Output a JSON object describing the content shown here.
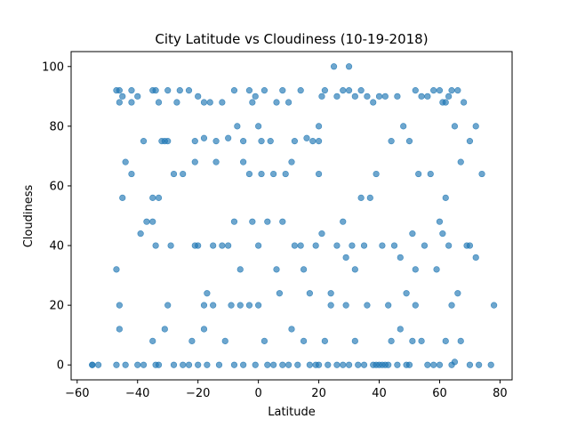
{
  "chart_data": {
    "type": "scatter",
    "title": "City Latitude vs Cloudiness (10-19-2018)",
    "xlabel": "Latitude",
    "ylabel": "Cloudiness",
    "xlim": [
      -62,
      84
    ],
    "ylim": [
      -5,
      105
    ],
    "xticks": [
      -60,
      -40,
      -20,
      0,
      20,
      40,
      60,
      80
    ],
    "yticks": [
      0,
      20,
      40,
      60,
      80,
      100
    ],
    "xtick_labels": [
      "−60",
      "−40",
      "−20",
      "0",
      "20",
      "40",
      "60",
      "80"
    ],
    "ytick_labels": [
      "0",
      "20",
      "40",
      "60",
      "80",
      "100"
    ],
    "grid": false,
    "legend": "none",
    "marker_color": "#1f77b4",
    "marker_alpha": 0.65,
    "points": [
      [
        -55,
        0
      ],
      [
        -53,
        0
      ],
      [
        -47,
        92
      ],
      [
        -46,
        88
      ],
      [
        -46,
        92
      ],
      [
        -45,
        90
      ],
      [
        -42,
        92
      ],
      [
        -42,
        88
      ],
      [
        -40,
        90
      ],
      [
        -38,
        75
      ],
      [
        -35,
        92
      ],
      [
        -34,
        92
      ],
      [
        -33,
        88
      ],
      [
        -32,
        75
      ],
      [
        -30,
        92
      ],
      [
        -30,
        75
      ],
      [
        -27,
        88
      ],
      [
        -26,
        92
      ],
      [
        -23,
        92
      ],
      [
        -21,
        75
      ],
      [
        -20,
        90
      ],
      [
        -18,
        88
      ],
      [
        -18,
        76
      ],
      [
        -16,
        88
      ],
      [
        -14,
        75
      ],
      [
        -12,
        88
      ],
      [
        -10,
        76
      ],
      [
        -8,
        92
      ],
      [
        -7,
        80
      ],
      [
        -5,
        75
      ],
      [
        -3,
        92
      ],
      [
        -2,
        88
      ],
      [
        -1,
        90
      ],
      [
        0,
        80
      ],
      [
        1,
        75
      ],
      [
        2,
        92
      ],
      [
        4,
        75
      ],
      [
        6,
        88
      ],
      [
        8,
        92
      ],
      [
        10,
        88
      ],
      [
        12,
        75
      ],
      [
        14,
        92
      ],
      [
        16,
        76
      ],
      [
        18,
        75
      ],
      [
        20,
        80
      ],
      [
        20,
        75
      ],
      [
        21,
        90
      ],
      [
        22,
        92
      ],
      [
        25,
        100
      ],
      [
        26,
        90
      ],
      [
        28,
        92
      ],
      [
        30,
        100
      ],
      [
        30,
        92
      ],
      [
        32,
        90
      ],
      [
        34,
        92
      ],
      [
        36,
        90
      ],
      [
        38,
        88
      ],
      [
        40,
        90
      ],
      [
        42,
        90
      ],
      [
        44,
        75
      ],
      [
        46,
        90
      ],
      [
        48,
        80
      ],
      [
        50,
        75
      ],
      [
        52,
        92
      ],
      [
        54,
        90
      ],
      [
        56,
        90
      ],
      [
        58,
        92
      ],
      [
        60,
        92
      ],
      [
        61,
        88
      ],
      [
        62,
        88
      ],
      [
        63,
        90
      ],
      [
        64,
        92
      ],
      [
        65,
        80
      ],
      [
        66,
        92
      ],
      [
        68,
        88
      ],
      [
        70,
        75
      ],
      [
        72,
        80
      ],
      [
        -47,
        32
      ],
      [
        -46,
        20
      ],
      [
        -46,
        12
      ],
      [
        -45,
        56
      ],
      [
        -44,
        68
      ],
      [
        -42,
        64
      ],
      [
        -39,
        44
      ],
      [
        -37,
        48
      ],
      [
        -35,
        56
      ],
      [
        -35,
        48
      ],
      [
        -34,
        40
      ],
      [
        -33,
        56
      ],
      [
        -31,
        75
      ],
      [
        -29,
        40
      ],
      [
        -28,
        64
      ],
      [
        -25,
        64
      ],
      [
        -21,
        68
      ],
      [
        -21,
        40
      ],
      [
        -20,
        40
      ],
      [
        -18,
        20
      ],
      [
        -17,
        24
      ],
      [
        -15,
        40
      ],
      [
        -14,
        68
      ],
      [
        -12,
        40
      ],
      [
        -10,
        40
      ],
      [
        -8,
        48
      ],
      [
        -6,
        32
      ],
      [
        -5,
        68
      ],
      [
        -3,
        64
      ],
      [
        -2,
        48
      ],
      [
        0,
        40
      ],
      [
        1,
        64
      ],
      [
        3,
        48
      ],
      [
        5,
        64
      ],
      [
        6,
        32
      ],
      [
        8,
        48
      ],
      [
        9,
        64
      ],
      [
        11,
        68
      ],
      [
        12,
        40
      ],
      [
        14,
        40
      ],
      [
        15,
        32
      ],
      [
        17,
        24
      ],
      [
        19,
        40
      ],
      [
        20,
        64
      ],
      [
        21,
        44
      ],
      [
        24,
        20
      ],
      [
        26,
        40
      ],
      [
        28,
        48
      ],
      [
        29,
        36
      ],
      [
        31,
        40
      ],
      [
        32,
        32
      ],
      [
        34,
        56
      ],
      [
        35,
        40
      ],
      [
        37,
        56
      ],
      [
        39,
        64
      ],
      [
        41,
        40
      ],
      [
        43,
        20
      ],
      [
        45,
        40
      ],
      [
        47,
        36
      ],
      [
        49,
        24
      ],
      [
        51,
        44
      ],
      [
        52,
        32
      ],
      [
        53,
        64
      ],
      [
        55,
        40
      ],
      [
        57,
        64
      ],
      [
        59,
        32
      ],
      [
        60,
        48
      ],
      [
        61,
        44
      ],
      [
        62,
        56
      ],
      [
        63,
        40
      ],
      [
        64,
        20
      ],
      [
        66,
        24
      ],
      [
        67,
        68
      ],
      [
        69,
        40
      ],
      [
        70,
        40
      ],
      [
        72,
        36
      ],
      [
        74,
        64
      ],
      [
        78,
        20
      ],
      [
        -55,
        0
      ],
      [
        -47,
        0
      ],
      [
        -44,
        0
      ],
      [
        -40,
        0
      ],
      [
        -38,
        0
      ],
      [
        -35,
        8
      ],
      [
        -34,
        0
      ],
      [
        -33,
        0
      ],
      [
        -31,
        12
      ],
      [
        -30,
        20
      ],
      [
        -28,
        0
      ],
      [
        -25,
        0
      ],
      [
        -23,
        0
      ],
      [
        -22,
        8
      ],
      [
        -20,
        0
      ],
      [
        -18,
        12
      ],
      [
        -17,
        0
      ],
      [
        -15,
        20
      ],
      [
        -13,
        0
      ],
      [
        -11,
        8
      ],
      [
        -9,
        20
      ],
      [
        -8,
        0
      ],
      [
        -6,
        20
      ],
      [
        -5,
        0
      ],
      [
        -3,
        20
      ],
      [
        -1,
        0
      ],
      [
        0,
        20
      ],
      [
        2,
        8
      ],
      [
        3,
        0
      ],
      [
        5,
        0
      ],
      [
        7,
        24
      ],
      [
        8,
        0
      ],
      [
        10,
        0
      ],
      [
        11,
        12
      ],
      [
        13,
        0
      ],
      [
        15,
        8
      ],
      [
        17,
        0
      ],
      [
        19,
        0
      ],
      [
        20,
        0
      ],
      [
        22,
        8
      ],
      [
        23,
        0
      ],
      [
        24,
        24
      ],
      [
        26,
        0
      ],
      [
        28,
        0
      ],
      [
        29,
        20
      ],
      [
        30,
        0
      ],
      [
        32,
        8
      ],
      [
        33,
        0
      ],
      [
        35,
        0
      ],
      [
        36,
        20
      ],
      [
        38,
        0
      ],
      [
        39,
        0
      ],
      [
        40,
        0
      ],
      [
        41,
        0
      ],
      [
        42,
        0
      ],
      [
        43,
        0
      ],
      [
        44,
        8
      ],
      [
        46,
        0
      ],
      [
        47,
        12
      ],
      [
        49,
        0
      ],
      [
        50,
        0
      ],
      [
        51,
        8
      ],
      [
        52,
        20
      ],
      [
        54,
        8
      ],
      [
        56,
        0
      ],
      [
        58,
        0
      ],
      [
        60,
        0
      ],
      [
        62,
        8
      ],
      [
        64,
        0
      ],
      [
        65,
        1
      ],
      [
        67,
        8
      ],
      [
        70,
        0
      ],
      [
        73,
        0
      ],
      [
        77,
        0
      ]
    ]
  }
}
